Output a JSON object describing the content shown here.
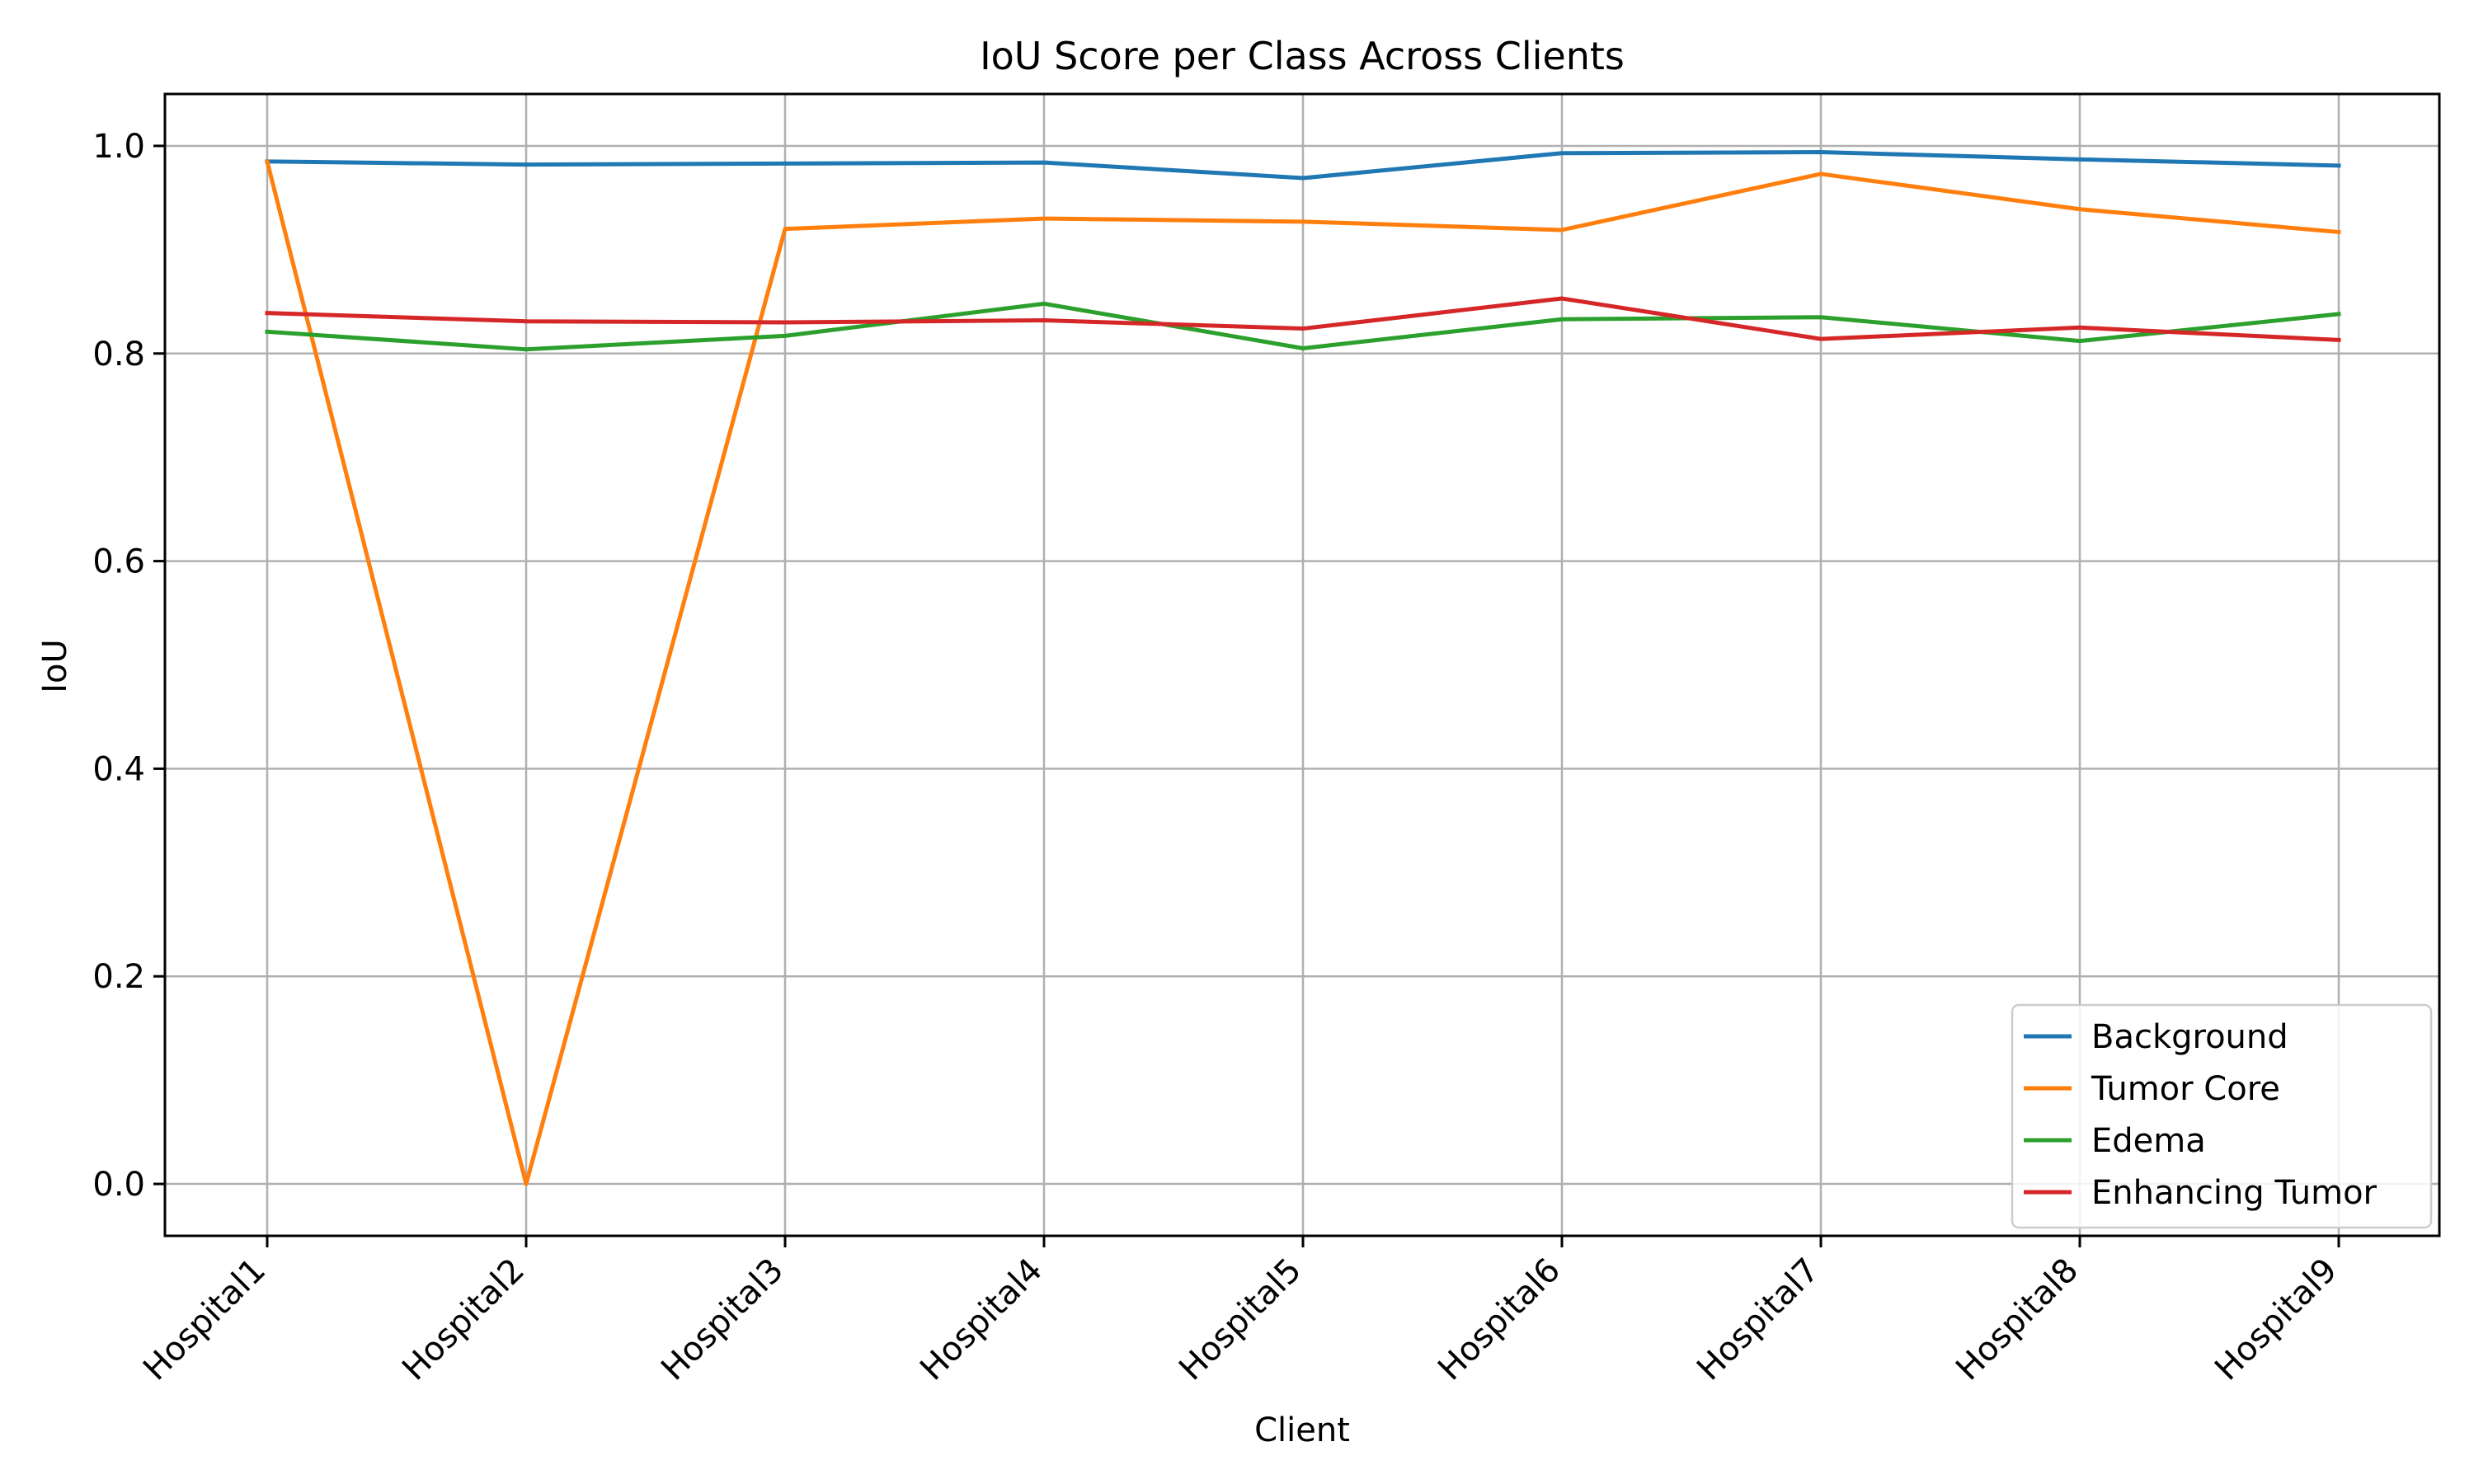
{
  "chart_data": {
    "type": "line",
    "title": "IoU Score per Class Across Clients",
    "xlabel": "Client",
    "ylabel": "IoU",
    "categories": [
      "Hospital1",
      "Hospital2",
      "Hospital3",
      "Hospital4",
      "Hospital5",
      "Hospital6",
      "Hospital7",
      "Hospital8",
      "Hospital9"
    ],
    "ylim": [
      -0.05,
      1.05
    ],
    "yticks": [
      0.0,
      0.2,
      0.4,
      0.6,
      0.8,
      1.0
    ],
    "ytick_labels": [
      "0.0",
      "0.2",
      "0.4",
      "0.6",
      "0.8",
      "1.0"
    ],
    "grid": true,
    "legend_position": "bottom-right",
    "series": [
      {
        "name": "Background",
        "color": "#1f77b4",
        "values": [
          0.985,
          0.982,
          0.983,
          0.984,
          0.969,
          0.993,
          0.994,
          0.987,
          0.981
        ]
      },
      {
        "name": "Tumor Core",
        "color": "#ff7f0e",
        "values": [
          0.985,
          0.0,
          0.92,
          0.93,
          0.927,
          0.919,
          0.973,
          0.939,
          0.917
        ]
      },
      {
        "name": "Edema",
        "color": "#2ca02c",
        "values": [
          0.821,
          0.804,
          0.817,
          0.848,
          0.805,
          0.833,
          0.835,
          0.812,
          0.838
        ]
      },
      {
        "name": "Enhancing Tumor",
        "color": "#d62728",
        "values": [
          0.839,
          0.831,
          0.83,
          0.832,
          0.824,
          0.853,
          0.814,
          0.825,
          0.813
        ]
      }
    ]
  }
}
